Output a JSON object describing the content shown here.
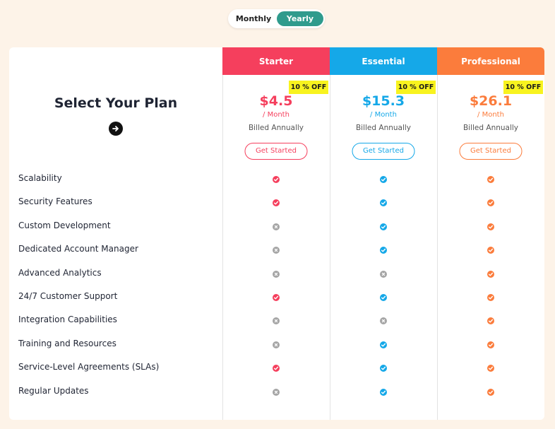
{
  "toggle": {
    "monthly": "Monthly",
    "yearly": "Yearly",
    "selected": "Yearly"
  },
  "heading": "Select Your Plan",
  "colors": {
    "starter": "#f53f5d",
    "essential": "#15a8e8",
    "professional": "#fb7c3c",
    "cross": "#a5a5a5",
    "toggle_active": "#2f9b8d",
    "badge": "#f8f31f"
  },
  "plans": [
    {
      "name": "Starter",
      "discount": "10 % OFF",
      "price": "$4.5",
      "per": "/ Month",
      "billed": "Billed Annually",
      "cta": "Get Started"
    },
    {
      "name": "Essential",
      "discount": "10 % OFF",
      "price": "$15.3",
      "per": "/ Month",
      "billed": "Billed Annually",
      "cta": "Get Started"
    },
    {
      "name": "Professional",
      "discount": "10 % OFF",
      "price": "$26.1",
      "per": "/ Month",
      "billed": "Billed Annually",
      "cta": "Get Started"
    }
  ],
  "features": [
    {
      "name": "Scalability",
      "included": [
        true,
        true,
        true
      ]
    },
    {
      "name": "Security Features",
      "included": [
        true,
        true,
        true
      ]
    },
    {
      "name": "Custom Development",
      "included": [
        false,
        true,
        true
      ]
    },
    {
      "name": "Dedicated Account Manager",
      "included": [
        false,
        true,
        true
      ]
    },
    {
      "name": "Advanced Analytics",
      "included": [
        false,
        false,
        true
      ]
    },
    {
      "name": "24/7 Customer Support",
      "included": [
        true,
        true,
        true
      ]
    },
    {
      "name": "Integration Capabilities",
      "included": [
        false,
        false,
        true
      ]
    },
    {
      "name": "Training and Resources",
      "included": [
        false,
        true,
        true
      ]
    },
    {
      "name": "Service-Level Agreements (SLAs)",
      "included": [
        true,
        true,
        true
      ]
    },
    {
      "name": "Regular Updates",
      "included": [
        false,
        true,
        true
      ]
    }
  ]
}
